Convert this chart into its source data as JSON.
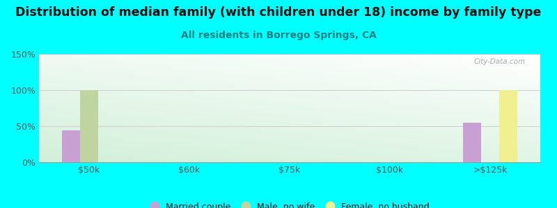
{
  "title": "Distribution of median family (with children under 18) income by family type",
  "subtitle": "All residents in Borrego Springs, CA",
  "background_color": "#00FFFF",
  "categories": [
    "$50k",
    "$60k",
    "$75k",
    "$100k",
    ">$125k"
  ],
  "series": {
    "Married couple": {
      "color": "#c8a0d4",
      "values": [
        44,
        0,
        0,
        0,
        55
      ]
    },
    "Male, no wife": {
      "color": "#c0d4a0",
      "values": [
        100,
        0,
        0,
        0,
        0
      ]
    },
    "Female, no husband": {
      "color": "#f0f090",
      "values": [
        0,
        0,
        0,
        0,
        100
      ]
    }
  },
  "ylim": [
    0,
    150
  ],
  "yticks": [
    0,
    50,
    100,
    150
  ],
  "ytick_labels": [
    "0%",
    "50%",
    "100%",
    "150%"
  ],
  "title_fontsize": 12.5,
  "subtitle_fontsize": 10,
  "subtitle_color": "#008080",
  "title_color": "#111111",
  "axis_label_color": "#555555",
  "watermark": "City-Data.com",
  "bar_width": 0.18,
  "legend_marker_color_married": "#c8a0d4",
  "legend_marker_color_male": "#c0d4a0",
  "legend_marker_color_female": "#f0f090"
}
